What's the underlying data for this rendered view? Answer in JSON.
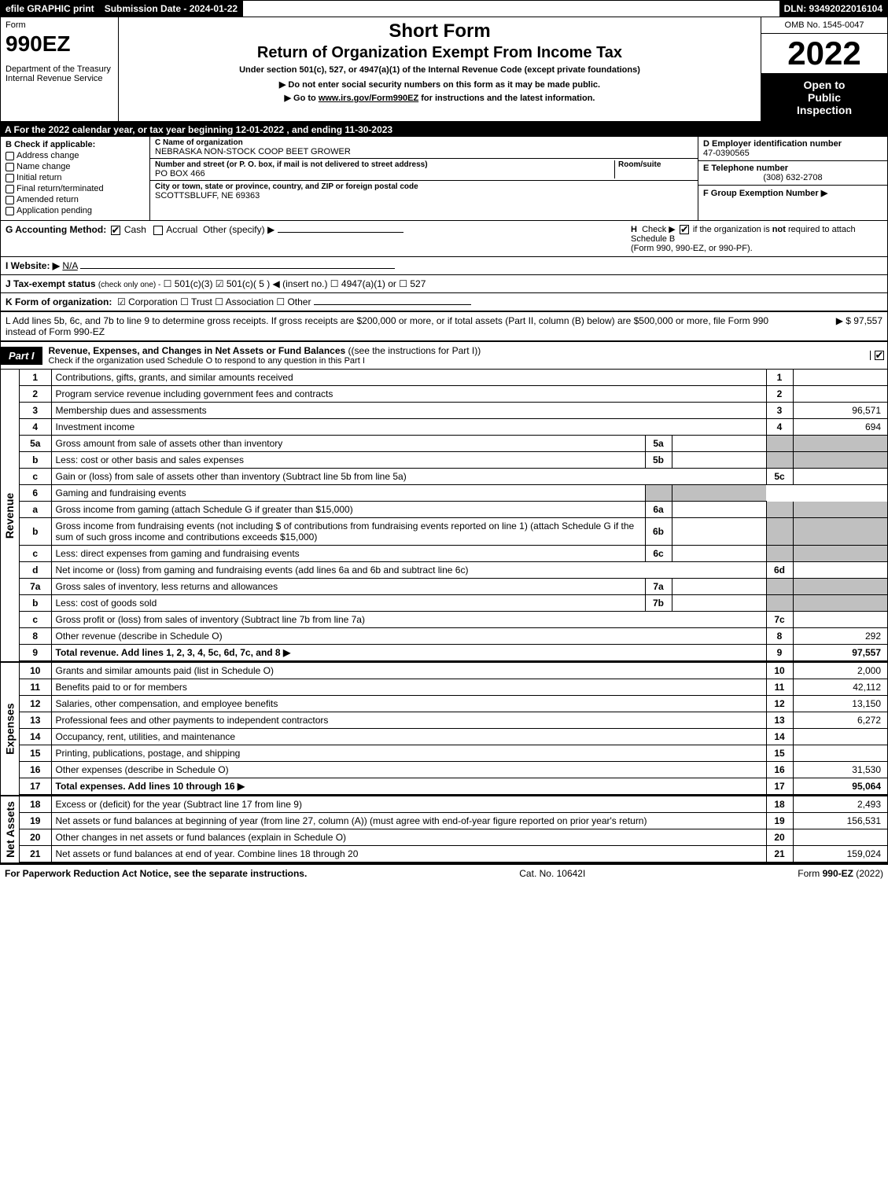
{
  "topbar": {
    "efile": "efile GRAPHIC print",
    "submission": "Submission Date - 2024-01-22",
    "dln": "DLN: 93492022016104"
  },
  "header": {
    "form_label": "Form",
    "form_number": "990EZ",
    "short_form": "Short Form",
    "title": "Return of Organization Exempt From Income Tax",
    "under": "Under section 501(c), 527, or 4947(a)(1) of the Internal Revenue Code (except private foundations)",
    "dept1": "Department of the Treasury",
    "dept2": "Internal Revenue Service",
    "instr1": "▶ Do not enter social security numbers on this form as it may be made public.",
    "instr2_prefix": "▶ Go to ",
    "instr2_link": "www.irs.gov/Form990EZ",
    "instr2_suffix": " for instructions and the latest information.",
    "omb": "OMB No. 1545-0047",
    "year": "2022",
    "inspect1": "Open to",
    "inspect2": "Public",
    "inspect3": "Inspection"
  },
  "sectionA": "A  For the 2022 calendar year, or tax year beginning 12-01-2022 , and ending 11-30-2023",
  "colB": {
    "label": "B  Check if applicable:",
    "items": [
      "Address change",
      "Name change",
      "Initial return",
      "Final return/terminated",
      "Amended return",
      "Application pending"
    ]
  },
  "colC": {
    "name_lbl": "C Name of organization",
    "name": "NEBRASKA NON-STOCK COOP BEET GROWER",
    "street_lbl": "Number and street (or P. O. box, if mail is not delivered to street address)",
    "room_lbl": "Room/suite",
    "street": "PO BOX 466",
    "city_lbl": "City or town, state or province, country, and ZIP or foreign postal code",
    "city": "SCOTTSBLUFF, NE  69363"
  },
  "colD": {
    "ein_lbl": "D Employer identification number",
    "ein": "47-0390565",
    "tel_lbl": "E Telephone number",
    "tel": "(308) 632-2708",
    "grp_lbl": "F Group Exemption Number   ▶"
  },
  "rowG": {
    "label": "G Accounting Method:",
    "cash": "Cash",
    "accrual": "Accrual",
    "other": "Other (specify) ▶"
  },
  "rowH": {
    "label": "H",
    "text1": "Check ▶ ☐ if the organization is ",
    "not": "not",
    "text2": " required to attach Schedule B",
    "text3": "(Form 990, 990-EZ, or 990-PF)."
  },
  "rowI": {
    "label": "I Website: ▶",
    "value": "N/A"
  },
  "rowJ": {
    "label": "J Tax-exempt status",
    "sub": "(check only one) -",
    "opts": "☐ 501(c)(3)  ☑ 501(c)( 5 ) ◀ (insert no.)  ☐ 4947(a)(1) or  ☐ 527"
  },
  "rowK": {
    "label": "K Form of organization:",
    "opts": "☑ Corporation   ☐ Trust   ☐ Association   ☐ Other"
  },
  "rowL": {
    "text": "L Add lines 5b, 6c, and 7b to line 9 to determine gross receipts. If gross receipts are $200,000 or more, or if total assets (Part II, column (B) below) are $500,000 or more, file Form 990 instead of Form 990-EZ",
    "amount": "▶ $ 97,557"
  },
  "part1": {
    "tag": "Part I",
    "title": "Revenue, Expenses, and Changes in Net Assets or Fund Balances",
    "title_paren": "(see the instructions for Part I)",
    "sub": "Check if the organization used Schedule O to respond to any question in this Part I"
  },
  "vlabels": {
    "revenue": "Revenue",
    "expenses": "Expenses",
    "netassets": "Net Assets"
  },
  "revenue_rows": [
    {
      "n": "1",
      "desc": "Contributions, gifts, grants, and similar amounts received",
      "rn": "1",
      "amt": ""
    },
    {
      "n": "2",
      "desc": "Program service revenue including government fees and contracts",
      "rn": "2",
      "amt": ""
    },
    {
      "n": "3",
      "desc": "Membership dues and assessments",
      "rn": "3",
      "amt": "96,571"
    },
    {
      "n": "4",
      "desc": "Investment income",
      "rn": "4",
      "amt": "694"
    },
    {
      "n": "5a",
      "desc": "Gross amount from sale of assets other than inventory",
      "in": "5a",
      "inval": "",
      "shade": true
    },
    {
      "n": "b",
      "desc": "Less: cost or other basis and sales expenses",
      "in": "5b",
      "inval": "",
      "shade": true
    },
    {
      "n": "c",
      "desc": "Gain or (loss) from sale of assets other than inventory (Subtract line 5b from line 5a)",
      "rn": "5c",
      "amt": ""
    },
    {
      "n": "6",
      "desc": "Gaming and fundraising events",
      "shade_full": true
    },
    {
      "n": "a",
      "desc": "Gross income from gaming (attach Schedule G if greater than $15,000)",
      "in": "6a",
      "inval": "",
      "shade": true
    },
    {
      "n": "b",
      "desc": "Gross income from fundraising events (not including $                     of contributions from fundraising events reported on line 1) (attach Schedule G if the sum of such gross income and contributions exceeds $15,000)",
      "in": "6b",
      "inval": "",
      "shade": true
    },
    {
      "n": "c",
      "desc": "Less: direct expenses from gaming and fundraising events",
      "in": "6c",
      "inval": "",
      "shade": true
    },
    {
      "n": "d",
      "desc": "Net income or (loss) from gaming and fundraising events (add lines 6a and 6b and subtract line 6c)",
      "rn": "6d",
      "amt": ""
    },
    {
      "n": "7a",
      "desc": "Gross sales of inventory, less returns and allowances",
      "in": "7a",
      "inval": "",
      "shade": true
    },
    {
      "n": "b",
      "desc": "Less: cost of goods sold",
      "in": "7b",
      "inval": "",
      "shade": true
    },
    {
      "n": "c",
      "desc": "Gross profit or (loss) from sales of inventory (Subtract line 7b from line 7a)",
      "rn": "7c",
      "amt": ""
    },
    {
      "n": "8",
      "desc": "Other revenue (describe in Schedule O)",
      "rn": "8",
      "amt": "292"
    },
    {
      "n": "9",
      "desc": "Total revenue. Add lines 1, 2, 3, 4, 5c, 6d, 7c, and 8",
      "rn": "9",
      "amt": "97,557",
      "bold": true,
      "arrow": true
    }
  ],
  "expense_rows": [
    {
      "n": "10",
      "desc": "Grants and similar amounts paid (list in Schedule O)",
      "rn": "10",
      "amt": "2,000"
    },
    {
      "n": "11",
      "desc": "Benefits paid to or for members",
      "rn": "11",
      "amt": "42,112"
    },
    {
      "n": "12",
      "desc": "Salaries, other compensation, and employee benefits",
      "rn": "12",
      "amt": "13,150"
    },
    {
      "n": "13",
      "desc": "Professional fees and other payments to independent contractors",
      "rn": "13",
      "amt": "6,272"
    },
    {
      "n": "14",
      "desc": "Occupancy, rent, utilities, and maintenance",
      "rn": "14",
      "amt": ""
    },
    {
      "n": "15",
      "desc": "Printing, publications, postage, and shipping",
      "rn": "15",
      "amt": ""
    },
    {
      "n": "16",
      "desc": "Other expenses (describe in Schedule O)",
      "rn": "16",
      "amt": "31,530"
    },
    {
      "n": "17",
      "desc": "Total expenses. Add lines 10 through 16",
      "rn": "17",
      "amt": "95,064",
      "bold": true,
      "arrow": true
    }
  ],
  "netasset_rows": [
    {
      "n": "18",
      "desc": "Excess or (deficit) for the year (Subtract line 17 from line 9)",
      "rn": "18",
      "amt": "2,493"
    },
    {
      "n": "19",
      "desc": "Net assets or fund balances at beginning of year (from line 27, column (A)) (must agree with end-of-year figure reported on prior year's return)",
      "rn": "19",
      "amt": "156,531"
    },
    {
      "n": "20",
      "desc": "Other changes in net assets or fund balances (explain in Schedule O)",
      "rn": "20",
      "amt": ""
    },
    {
      "n": "21",
      "desc": "Net assets or fund balances at end of year. Combine lines 18 through 20",
      "rn": "21",
      "amt": "159,024"
    }
  ],
  "footer": {
    "left": "For Paperwork Reduction Act Notice, see the separate instructions.",
    "center": "Cat. No. 10642I",
    "right_prefix": "Form ",
    "right_form": "990-EZ",
    "right_suffix": " (2022)"
  },
  "colors": {
    "black": "#000000",
    "white": "#ffffff",
    "shade": "#c0c0c0"
  }
}
